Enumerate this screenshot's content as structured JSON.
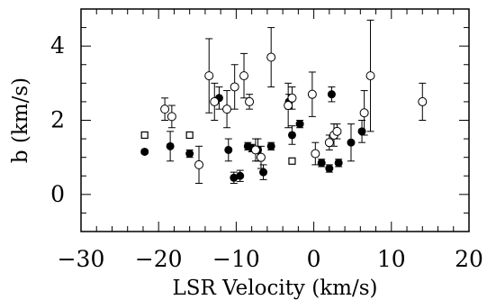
{
  "chart_data": {
    "type": "scatter",
    "title": "",
    "xlabel": "LSR Velocity (km/s)",
    "ylabel": "b (km/s)",
    "xlim": [
      -30,
      20
    ],
    "ylim": [
      -1,
      5
    ],
    "x_ticks": [
      -30,
      -20,
      -10,
      0,
      10,
      20
    ],
    "x_tick_labels": [
      "−30",
      "−20",
      "−10",
      "0",
      "10",
      "20"
    ],
    "y_ticks": [
      0,
      2,
      4
    ],
    "y_tick_labels": [
      "0",
      "2",
      "4"
    ],
    "grid": false,
    "legend": "none",
    "series": [
      {
        "marker": "filled-circle",
        "points": [
          {
            "x": -21.8,
            "y": 1.15,
            "err": 0.05
          },
          {
            "x": -18.5,
            "y": 1.3,
            "err": 0.4
          },
          {
            "x": -16.0,
            "y": 1.1,
            "err": 0.1
          },
          {
            "x": -12.2,
            "y": 2.6,
            "err": 0.3
          },
          {
            "x": -11.0,
            "y": 1.2,
            "err": 0.3
          },
          {
            "x": -10.3,
            "y": 0.45,
            "err": 0.15
          },
          {
            "x": -9.5,
            "y": 0.5,
            "err": 0.15
          },
          {
            "x": -8.5,
            "y": 1.3,
            "err": 0.1
          },
          {
            "x": -8.0,
            "y": 1.25,
            "err": 0.1
          },
          {
            "x": -7.2,
            "y": 1.2,
            "err": 0.3
          },
          {
            "x": -6.5,
            "y": 0.6,
            "err": 0.2
          },
          {
            "x": -5.5,
            "y": 1.3,
            "err": 0.1
          },
          {
            "x": -3.2,
            "y": 2.5,
            "err": 0.2
          },
          {
            "x": -2.8,
            "y": 1.6,
            "err": 0.25
          },
          {
            "x": -1.8,
            "y": 1.9,
            "err": 0.1
          },
          {
            "x": 1.0,
            "y": 0.85,
            "err": 0.1
          },
          {
            "x": 2.0,
            "y": 0.7,
            "err": 0.1
          },
          {
            "x": 2.3,
            "y": 2.7,
            "err": 0.2
          },
          {
            "x": 3.2,
            "y": 0.85,
            "err": 0.1
          },
          {
            "x": 4.8,
            "y": 1.4,
            "err": 0.5
          },
          {
            "x": 6.2,
            "y": 1.7,
            "err": 0.3
          }
        ]
      },
      {
        "marker": "open-circle",
        "points": [
          {
            "x": -19.2,
            "y": 2.3,
            "err": 0.3
          },
          {
            "x": -18.3,
            "y": 2.1,
            "err": 0.3
          },
          {
            "x": -14.8,
            "y": 0.8,
            "err": 0.5
          },
          {
            "x": -13.5,
            "y": 3.2,
            "err": 1.0
          },
          {
            "x": -12.8,
            "y": 2.5,
            "err": 0.5
          },
          {
            "x": -11.2,
            "y": 2.3,
            "err": 0.5
          },
          {
            "x": -10.2,
            "y": 2.9,
            "err": 0.6
          },
          {
            "x": -9.0,
            "y": 3.2,
            "err": 0.6
          },
          {
            "x": -8.3,
            "y": 2.5,
            "err": 0.2
          },
          {
            "x": -7.5,
            "y": 1.2,
            "err": 0.3
          },
          {
            "x": -6.8,
            "y": 1.0,
            "err": 0.3
          },
          {
            "x": -5.5,
            "y": 3.7,
            "err": 0.8
          },
          {
            "x": -3.3,
            "y": 2.4,
            "err": 0.6
          },
          {
            "x": -2.8,
            "y": 2.6,
            "err": 0.3
          },
          {
            "x": -0.2,
            "y": 2.7,
            "err": 0.6
          },
          {
            "x": 0.2,
            "y": 1.1,
            "err": 0.3
          },
          {
            "x": 2.0,
            "y": 1.4,
            "err": 0.2
          },
          {
            "x": 2.6,
            "y": 1.6,
            "err": 0.3
          },
          {
            "x": 3.0,
            "y": 1.7,
            "err": 0.2
          },
          {
            "x": 6.5,
            "y": 2.2,
            "err": 0.6
          },
          {
            "x": 7.3,
            "y": 3.2,
            "err": 1.5
          },
          {
            "x": 14.0,
            "y": 2.5,
            "err": 0.5
          }
        ]
      },
      {
        "marker": "open-square",
        "points": [
          {
            "x": -21.8,
            "y": 1.6
          },
          {
            "x": -16.0,
            "y": 1.6
          },
          {
            "x": -2.8,
            "y": 0.9
          }
        ]
      }
    ]
  }
}
